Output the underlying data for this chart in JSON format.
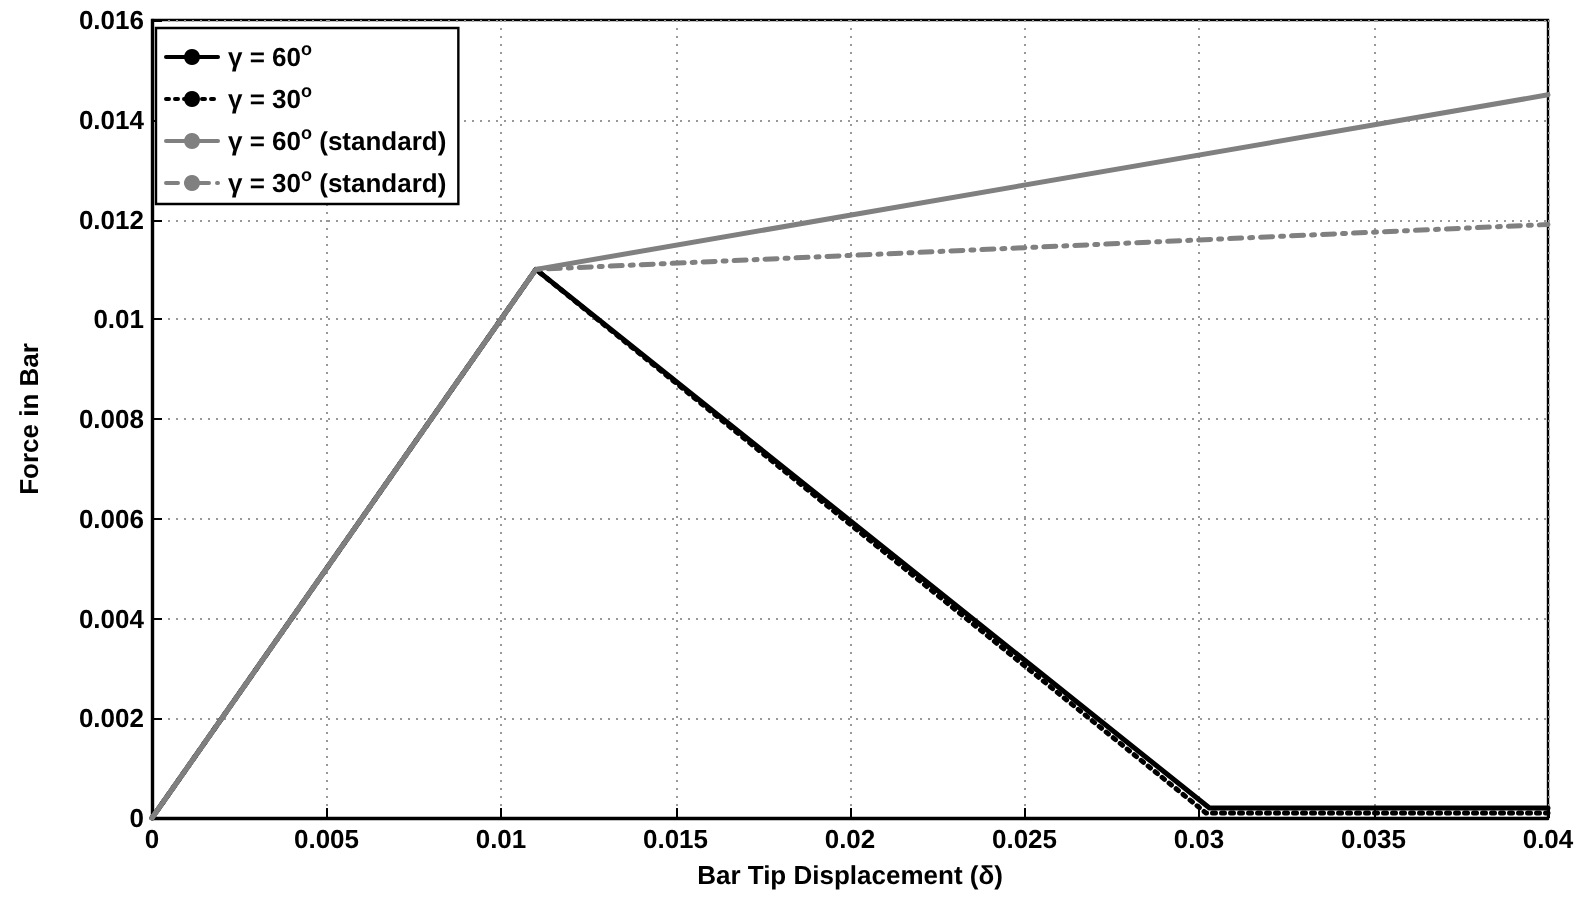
{
  "chart_data": {
    "type": "line",
    "xlabel": "Bar Tip Displacement (δ)",
    "ylabel": "Force in Bar",
    "xlim": [
      0,
      0.04
    ],
    "xticks": [
      0,
      0.005,
      0.01,
      0.015,
      0.02,
      0.025,
      0.03,
      0.035,
      0.04
    ],
    "ylim": [
      0,
      0.016
    ],
    "yticks": [
      0,
      0.002,
      0.004,
      0.006,
      0.008,
      0.01,
      0.012,
      0.014,
      0.016
    ],
    "grid": true,
    "legend": "top left",
    "marker": "none",
    "series": [
      {
        "name": "γ = 60$^{o}$",
        "color": "#000000",
        "line_style": "solid",
        "x": [
          0,
          0.011,
          0.0303,
          0.04
        ],
        "values": [
          0,
          0.011,
          0.0002,
          0.0002
        ]
      },
      {
        "name": "γ = 30$^{o}$",
        "color": "#000000",
        "line_style": "dotted",
        "x": [
          0,
          0.011,
          0.0302,
          0.04
        ],
        "values": [
          0,
          0.011,
          0.0001,
          0.0001
        ]
      },
      {
        "name": "γ = 60$^{o}$ (standard)",
        "color": "#808080",
        "line_style": "solid",
        "x": [
          0,
          0.011,
          0.04
        ],
        "values": [
          0,
          0.011,
          0.0145
        ]
      },
      {
        "name": "γ = 30$^{o}$ (standard)",
        "color": "#808080",
        "line_style": "dashed",
        "x": [
          0,
          0.011,
          0.04
        ],
        "values": [
          0,
          0.011,
          0.0119
        ]
      }
    ]
  }
}
